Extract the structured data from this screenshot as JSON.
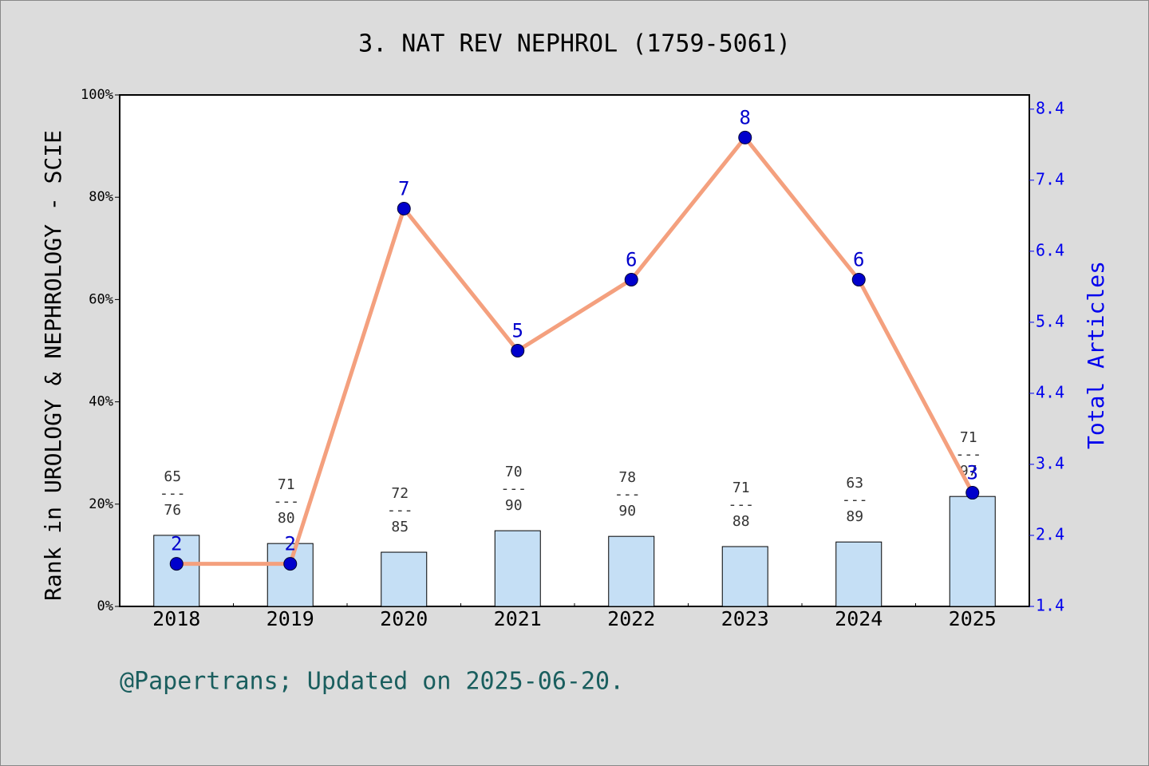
{
  "chart_data": {
    "type": "bar-line",
    "title": "3. NAT REV NEPHROL (1759-5061)",
    "ylabel": "Rank in UROLOGY & NEPHROLOGY - SCIE",
    "y2label": "Total Articles",
    "footer": "@Papertrans; Updated on 2025-06-20.",
    "categories": [
      "2018",
      "2019",
      "2020",
      "2021",
      "2022",
      "2023",
      "2024",
      "2025"
    ],
    "series": [
      {
        "type": "bar",
        "color": "#c5dff5",
        "values": [
          13.9,
          12.3,
          10.6,
          14.8,
          13.7,
          11.7,
          12.6,
          21.5
        ],
        "annotations": [
          [
            "65",
            "---",
            "76"
          ],
          [
            "71",
            "---",
            "80"
          ],
          [
            "72",
            "---",
            "85"
          ],
          [
            "70",
            "---",
            "90"
          ],
          [
            "78",
            "---",
            "90"
          ],
          [
            "71",
            "---",
            "88"
          ],
          [
            "63",
            "---",
            "89"
          ],
          [
            "71",
            "---",
            "97"
          ]
        ]
      },
      {
        "type": "line",
        "axis": "y2",
        "color": "#f4a07e",
        "marker_color": "#0000cc",
        "values": [
          2,
          2,
          7,
          5,
          6,
          8,
          6,
          3
        ]
      }
    ],
    "ylim": [
      0,
      100
    ],
    "yticks": [
      {
        "value": 0,
        "label": "0%"
      },
      {
        "value": 20,
        "label": "20%"
      },
      {
        "value": 40,
        "label": "40%"
      },
      {
        "value": 60,
        "label": "60%"
      },
      {
        "value": 80,
        "label": "80%"
      },
      {
        "value": 100,
        "label": "100%"
      }
    ],
    "y2lim": [
      1.4,
      8.6
    ],
    "y2ticks": [
      1.4,
      2.4,
      3.4,
      4.4,
      5.4,
      6.4,
      7.4,
      8.4
    ]
  }
}
